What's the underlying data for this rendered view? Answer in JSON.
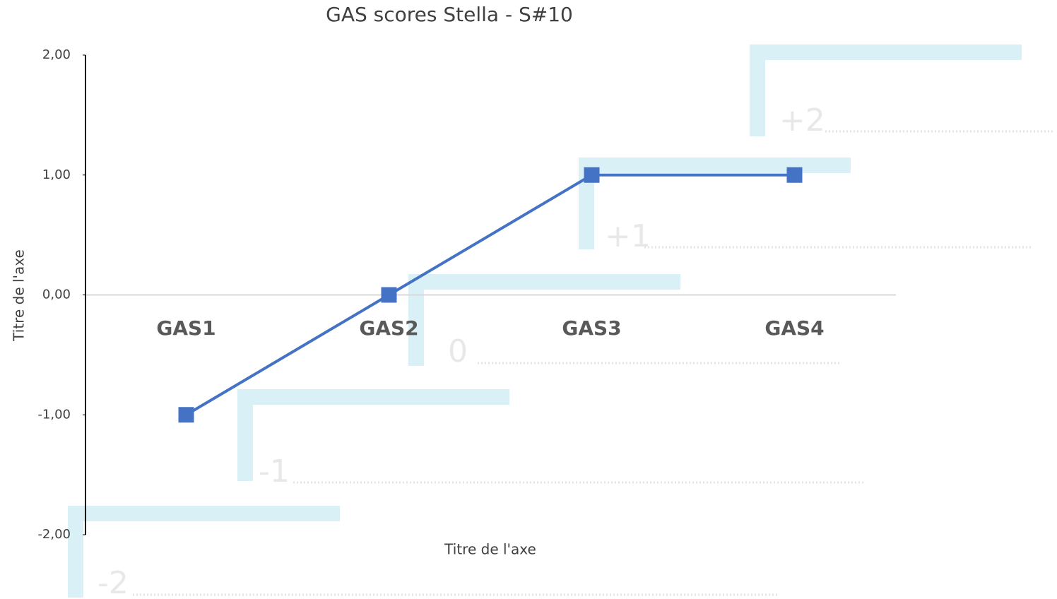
{
  "chart_data": {
    "type": "line",
    "title": "GAS scores Stella - S#10",
    "x_label": "Titre de l'axe",
    "y_label": "Titre de l'axe",
    "categories": [
      "GAS1",
      "GAS2",
      "GAS3",
      "GAS4"
    ],
    "values": [
      -1,
      0,
      1,
      1
    ],
    "color": "#4472c4",
    "ylim": [
      -2,
      2
    ],
    "yticks": [
      {
        "value": -2,
        "label": "-2,00"
      },
      {
        "value": -1,
        "label": "-1,00"
      },
      {
        "value": 0,
        "label": "0,00"
      },
      {
        "value": 1,
        "label": "1,00"
      },
      {
        "value": 2,
        "label": "2,00"
      }
    ],
    "annotations": [
      "-2",
      "-1",
      "0",
      "+1",
      "+2"
    ]
  }
}
